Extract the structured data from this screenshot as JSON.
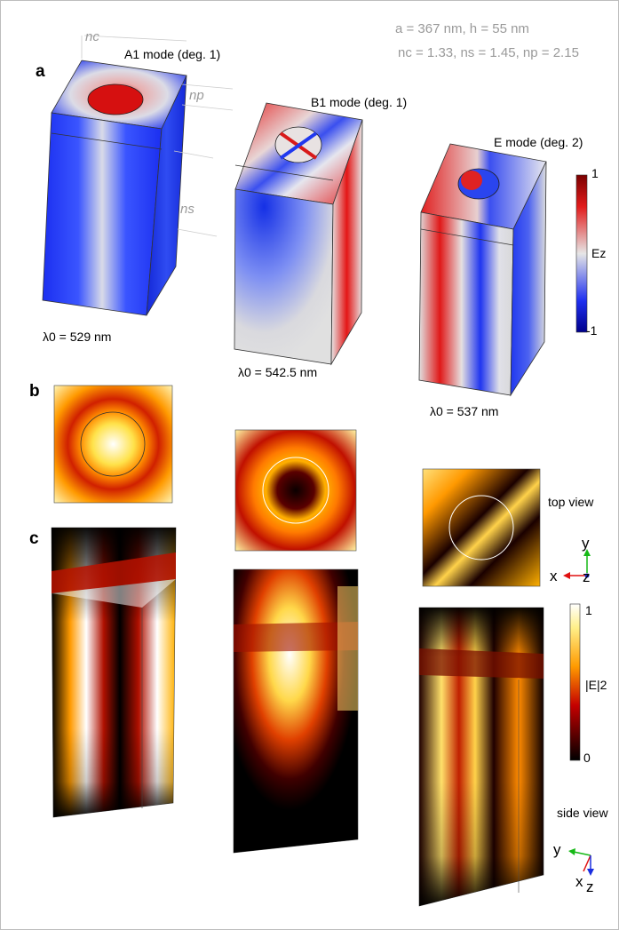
{
  "params": {
    "line1": "a = 367 nm, h = 55 nm",
    "line2": "nc = 1.33, ns = 1.45, np = 2.15"
  },
  "panels": {
    "a": "a",
    "b": "b",
    "c": "c"
  },
  "refractive_labels": {
    "nc": "nc",
    "np": "np",
    "ns": "ns"
  },
  "modes": [
    {
      "title": "A1 mode (deg. 1)",
      "wavelength": "λ0 = 529 nm"
    },
    {
      "title": "B1 mode (deg. 1)",
      "wavelength": "λ0 = 542.5 nm"
    },
    {
      "title": "E mode (deg. 2)",
      "wavelength": "λ0 = 537 nm"
    }
  ],
  "colorbar_ez": {
    "label": "Ez",
    "max": "1",
    "min": "-1"
  },
  "colorbar_e2": {
    "label": "|E|2",
    "max": "1",
    "min": "0"
  },
  "views": {
    "top": "top view",
    "side": "side view"
  },
  "axes_top": {
    "y": "y",
    "x": "x",
    "z": "z"
  },
  "axes_side": {
    "y": "y",
    "x": "x",
    "z": "z"
  }
}
